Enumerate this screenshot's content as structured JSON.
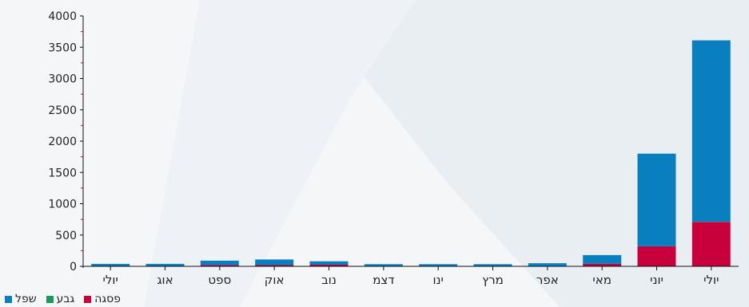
{
  "chart_data": {
    "type": "bar",
    "stacked": true,
    "categories": [
      "יולי",
      "אוג",
      "ספט",
      "אוק",
      "נוב",
      "דצמ",
      "ינו",
      "מרץ",
      "אפר",
      "מאי",
      "יוני",
      "יולי"
    ],
    "series": [
      {
        "name": "פסגה",
        "color": "#c8003c",
        "values": [
          0,
          0,
          20,
          20,
          25,
          0,
          0,
          0,
          0,
          40,
          320,
          710
        ]
      },
      {
        "name": "גבע",
        "color": "#1a9a5a",
        "values": [
          0,
          0,
          0,
          0,
          0,
          0,
          0,
          0,
          0,
          0,
          0,
          0
        ]
      },
      {
        "name": "שפל",
        "color": "#0a7fbf",
        "values": [
          40,
          40,
          70,
          90,
          55,
          35,
          35,
          35,
          50,
          140,
          1480,
          2900
        ]
      }
    ],
    "ylim": [
      0,
      4000
    ],
    "yticks": [
      "0",
      "500",
      "1000",
      "1500",
      "2000",
      "2500",
      "3000",
      "3500",
      "4000"
    ],
    "legend_position": "bottom-left",
    "grid": false
  }
}
